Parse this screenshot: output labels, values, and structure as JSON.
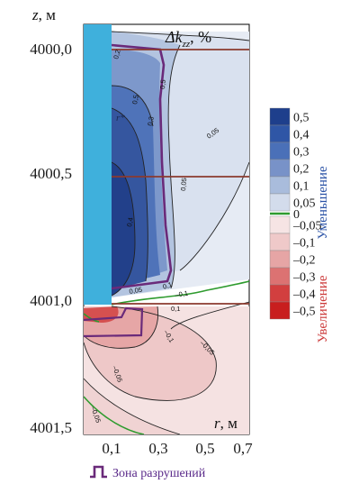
{
  "chart_data": {
    "type": "heatmap",
    "title": "Δk",
    "title_sub": "zz",
    "title_unit": ", %",
    "ylabel_var": "z",
    "ylabel_unit": ", м",
    "xlabel_var": "r",
    "xlabel_unit": ", м",
    "x_ticks": [
      "0,1",
      "0,3",
      "0,5",
      "0,7"
    ],
    "y_ticks": [
      "4000,0",
      "4000,5",
      "4001,0",
      "4001,5"
    ],
    "xlim": [
      0.0,
      0.7
    ],
    "ylim": [
      4000.0,
      4001.5
    ],
    "colorbar": {
      "levels": [
        "0,5",
        "0,4",
        "0,3",
        "0,2",
        "0,1",
        "0,05",
        "0",
        "–0,05",
        "–0,1",
        "–0,2",
        "–0,3",
        "–0,4",
        "–0,5"
      ],
      "label_positive": "Уменьшение",
      "label_negative": "Увеличение",
      "colors": [
        "#1e3f8c",
        "#2f56a6",
        "#4a70b8",
        "#7892c8",
        "#a9bcdc",
        "#d3dcec",
        "#ffffff",
        "#f6e4e4",
        "#efc9c9",
        "#e6a5a5",
        "#dc7272",
        "#d23f3f",
        "#c81e1e"
      ],
      "zero_line_color": "#2e9b2e"
    },
    "contour_labels": [
      "0,2",
      "0,3",
      "0,4",
      "0,5",
      "0,05",
      "0,1",
      "–0,05",
      "–0,1",
      "–0,05",
      "–0,05",
      "–0,1",
      "0,1",
      "0,05",
      "0,5",
      "0,05"
    ],
    "annotation": "r*",
    "borehole_color": "#3fb0dc",
    "interface_color": "#8b3a2e",
    "damage_zone_color": "#6a2a7a"
  },
  "legend": {
    "damage_zone_label": "Зона разрушений"
  }
}
